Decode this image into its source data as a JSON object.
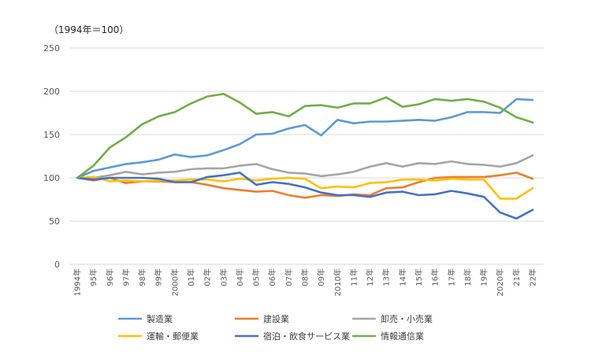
{
  "chart_data": {
    "type": "line",
    "unit_label": "（1994年＝100）",
    "ylim": [
      0,
      250
    ],
    "yticks": [
      "0",
      "50",
      "100",
      "150",
      "200",
      "250"
    ],
    "grid": true,
    "legend_position": "bottom",
    "categories": [
      "1994年",
      "95年",
      "96年",
      "97年",
      "98年",
      "99年",
      "2000年",
      "01年",
      "02年",
      "03年",
      "04年",
      "05年",
      "06年",
      "07年",
      "08年",
      "09年",
      "2010年",
      "11年",
      "12年",
      "13年",
      "14年",
      "15年",
      "16年",
      "17年",
      "18年",
      "19年",
      "2020年",
      "21年",
      "22年"
    ],
    "series": [
      {
        "name": "製造業",
        "color": "#5b9bd5",
        "values": [
          100,
          108,
          112,
          116,
          118,
          121,
          127,
          124,
          126,
          132,
          139,
          150,
          151,
          157,
          161,
          149,
          167,
          163,
          165,
          165,
          166,
          167,
          166,
          170,
          176,
          176,
          175,
          191,
          190
        ]
      },
      {
        "name": "建設業",
        "color": "#ed7d31",
        "values": [
          100,
          97,
          100,
          94,
          96,
          96,
          95,
          95,
          92,
          88,
          86,
          84,
          85,
          80,
          77,
          80,
          79,
          81,
          80,
          88,
          89,
          95,
          100,
          101,
          101,
          101,
          103,
          106,
          99
        ]
      },
      {
        "name": "卸売・小売業",
        "color": "#a5a5a5",
        "values": [
          100,
          100,
          103,
          107,
          104,
          106,
          107,
          110,
          111,
          111,
          114,
          116,
          110,
          106,
          105,
          102,
          104,
          107,
          113,
          117,
          113,
          117,
          116,
          119,
          116,
          115,
          113,
          117,
          126
        ]
      },
      {
        "name": "運輸・郵便業",
        "color": "#ffc000",
        "values": [
          100,
          101,
          96,
          97,
          96,
          97,
          97,
          98,
          98,
          96,
          99,
          97,
          99,
          100,
          99,
          88,
          90,
          89,
          94,
          95,
          98,
          98,
          97,
          99,
          98,
          98,
          76,
          76,
          88
        ]
      },
      {
        "name": "宿泊・飲食サービス業",
        "color": "#4472c4",
        "values": [
          100,
          98,
          100,
          100,
          100,
          99,
          95,
          95,
          101,
          103,
          106,
          92,
          95,
          93,
          89,
          83,
          80,
          80,
          78,
          83,
          84,
          80,
          81,
          85,
          82,
          78,
          60,
          53,
          63
        ]
      },
      {
        "name": "情報通信業",
        "color": "#70ad47",
        "values": [
          100,
          114,
          135,
          147,
          162,
          171,
          176,
          186,
          194,
          197,
          187,
          174,
          176,
          171,
          183,
          184,
          181,
          186,
          186,
          193,
          182,
          185,
          191,
          189,
          191,
          188,
          181,
          170,
          164
        ]
      }
    ]
  }
}
